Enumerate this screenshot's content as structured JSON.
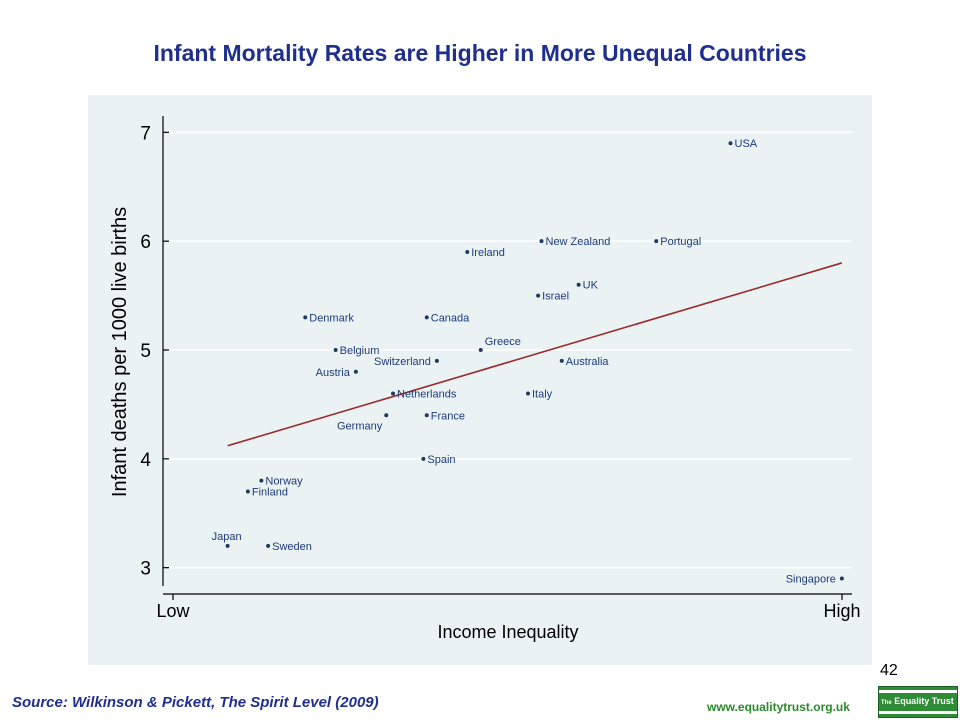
{
  "title": "Infant Mortality Rates are Higher in More Unequal Countries",
  "page_number": "42",
  "source": "Source: Wilkinson & Pickett, The Spirit Level (2009)",
  "website": "www.equalitytrust.org.uk",
  "logo": {
    "prefix": "The",
    "name": "Equality Trust"
  },
  "colors": {
    "title": "#1f2f8f",
    "panel": "#eaf2f3",
    "grid": "#ffffff",
    "point": "#1f3a5f",
    "label": "#1f3a7a",
    "fit_line": "#9b2a2a",
    "website": "#2a8a2a",
    "logo": "#2e8b36"
  },
  "chart_data": {
    "type": "scatter",
    "title": "Infant Mortality Rates are Higher in More Unequal Countries",
    "xlabel": "Income Inequality",
    "ylabel": "Infant deaths per 1000 live births",
    "x_tick_labels": [
      "Low",
      "High"
    ],
    "y_ticks": [
      3,
      4,
      5,
      6,
      7
    ],
    "ylim": [
      2.85,
      7.15
    ],
    "xlim": [
      0,
      100
    ],
    "grid": true,
    "points": [
      {
        "country": "USA",
        "x": 82,
        "y": 6.9
      },
      {
        "country": "New Zealand",
        "x": 54,
        "y": 6.0
      },
      {
        "country": "Portugal",
        "x": 71,
        "y": 6.0
      },
      {
        "country": "Ireland",
        "x": 43,
        "y": 5.9
      },
      {
        "country": "UK",
        "x": 59.5,
        "y": 5.6
      },
      {
        "country": "Israel",
        "x": 53.5,
        "y": 5.5
      },
      {
        "country": "Denmark",
        "x": 19,
        "y": 5.3
      },
      {
        "country": "Canada",
        "x": 37,
        "y": 5.3
      },
      {
        "country": "Greece",
        "x": 45,
        "y": 5.0
      },
      {
        "country": "Belgium",
        "x": 23.5,
        "y": 5.0
      },
      {
        "country": "Switzerland",
        "x": 38.5,
        "y": 4.9
      },
      {
        "country": "Australia",
        "x": 57,
        "y": 4.9
      },
      {
        "country": "Austria",
        "x": 26.5,
        "y": 4.8
      },
      {
        "country": "Netherlands",
        "x": 32,
        "y": 4.6
      },
      {
        "country": "Italy",
        "x": 52,
        "y": 4.6
      },
      {
        "country": "Germany",
        "x": 31,
        "y": 4.4
      },
      {
        "country": "France",
        "x": 37,
        "y": 4.4
      },
      {
        "country": "Spain",
        "x": 36.5,
        "y": 4.0
      },
      {
        "country": "Norway",
        "x": 12.5,
        "y": 3.8
      },
      {
        "country": "Finland",
        "x": 10.5,
        "y": 3.7
      },
      {
        "country": "Japan",
        "x": 7.5,
        "y": 3.2
      },
      {
        "country": "Sweden",
        "x": 13.5,
        "y": 3.2
      },
      {
        "country": "Singapore",
        "x": 98.5,
        "y": 2.9
      }
    ],
    "fit_line": {
      "x": [
        7.5,
        98.5
      ],
      "y": [
        4.12,
        5.8
      ]
    }
  }
}
